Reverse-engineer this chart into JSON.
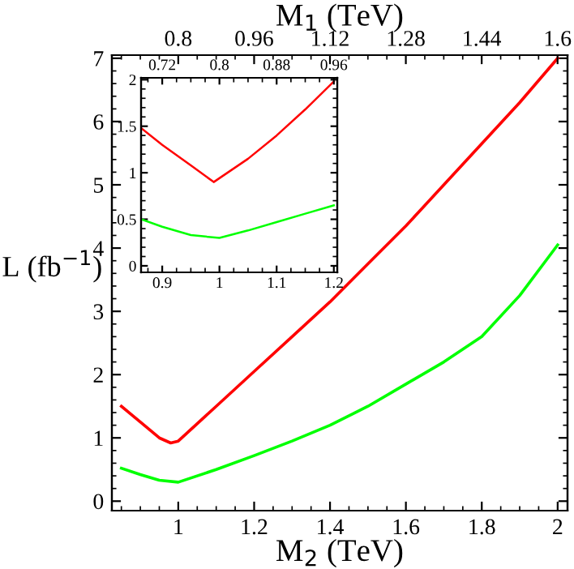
{
  "chart_data": [
    {
      "type": "line",
      "xlabel": "M$_{2}$ (TeV)",
      "ylabel": "L (fb$^{−1}$)",
      "x2label": "M$_{1}$ (TeV)",
      "xlim": [
        0.825,
        2.026
      ],
      "ylim": [
        -0.15,
        7.05
      ],
      "xticks": [
        1,
        1.2,
        1.4,
        1.6,
        1.8,
        2
      ],
      "yticks": [
        0,
        1,
        2,
        3,
        4,
        5,
        6,
        7
      ],
      "x2lim": [
        0.66,
        1.621
      ],
      "x2ticks": [
        0.8,
        0.96,
        1.12,
        1.28,
        1.44,
        1.6
      ],
      "grid": false,
      "legend": false,
      "line_style": "solid",
      "marker": "none",
      "series": [
        {
          "color": "#ff0000",
          "x": [
            0.85,
            0.9,
            0.95,
            0.98,
            1.0,
            1.1,
            1.2,
            1.3,
            1.4,
            1.5,
            1.6,
            1.7,
            1.8,
            1.9,
            2.0
          ],
          "values": [
            1.5,
            1.25,
            1.0,
            0.92,
            0.95,
            1.5,
            2.05,
            2.6,
            3.15,
            3.75,
            4.35,
            5.0,
            5.65,
            6.3,
            7.0
          ]
        },
        {
          "color": "#00ff00",
          "x": [
            0.85,
            0.9,
            0.95,
            1.0,
            1.1,
            1.2,
            1.3,
            1.4,
            1.5,
            1.6,
            1.7,
            1.8,
            1.9,
            2.0
          ],
          "values": [
            0.52,
            0.42,
            0.33,
            0.3,
            0.5,
            0.72,
            0.95,
            1.2,
            1.5,
            1.85,
            2.2,
            2.6,
            3.25,
            4.05
          ]
        }
      ]
    },
    {
      "type": "line",
      "xlim": [
        0.863,
        1.206
      ],
      "ylim": [
        -0.07,
        2.02
      ],
      "xticks": [
        0.9,
        1,
        1.1,
        1.2
      ],
      "yticks": [
        0,
        0.5,
        1,
        1.5,
        2
      ],
      "x2lim": [
        0.6904,
        0.9648
      ],
      "x2ticks": [
        0.72,
        0.8,
        0.88,
        0.96
      ],
      "grid": false,
      "legend": false,
      "line_style": "solid",
      "marker": "none",
      "series": [
        {
          "color": "#ff0000",
          "x": [
            0.863,
            0.9,
            0.95,
            0.99,
            1.05,
            1.1,
            1.15,
            1.2
          ],
          "values": [
            1.48,
            1.3,
            1.08,
            0.9,
            1.15,
            1.4,
            1.68,
            1.98
          ]
        },
        {
          "color": "#00ff00",
          "x": [
            0.863,
            0.9,
            0.95,
            1.0,
            1.05,
            1.1,
            1.15,
            1.2
          ],
          "values": [
            0.5,
            0.42,
            0.33,
            0.3,
            0.38,
            0.47,
            0.56,
            0.65
          ]
        }
      ]
    }
  ]
}
